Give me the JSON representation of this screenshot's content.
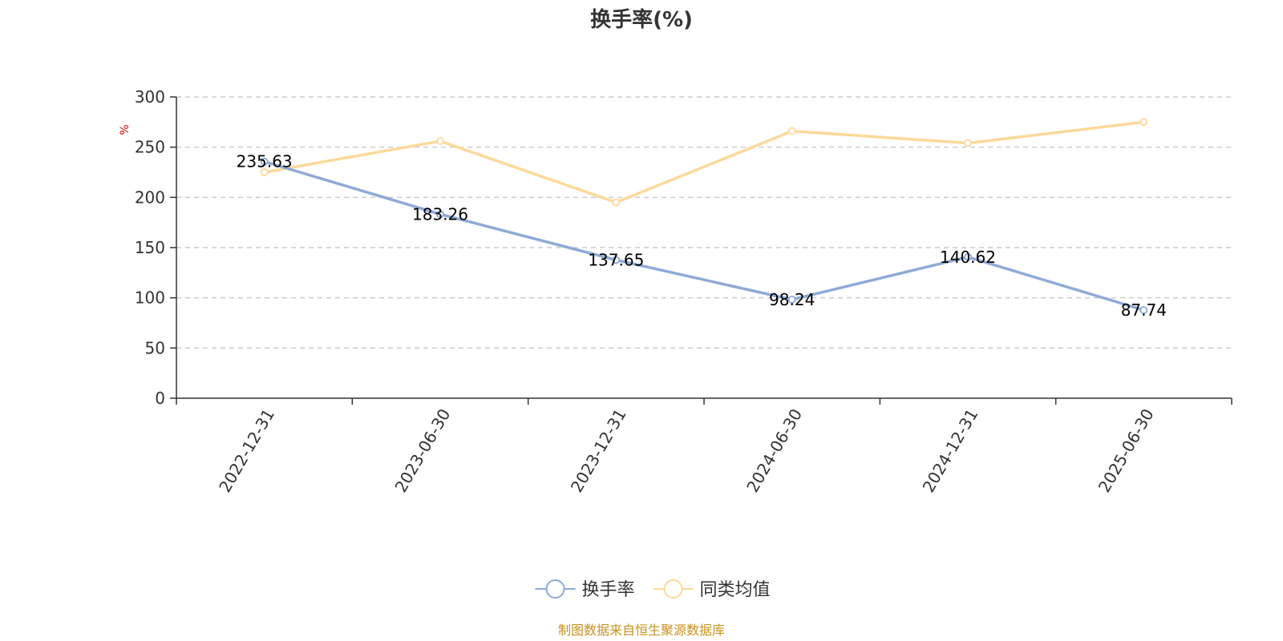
{
  "chart_data": {
    "type": "line",
    "title": "换手率(%)",
    "ylabel": "%",
    "xlabel": "",
    "categories": [
      "2022-12-31",
      "2023-06-30",
      "2023-12-31",
      "2024-06-30",
      "2024-12-31",
      "2025-06-30"
    ],
    "ylim": [
      0,
      300
    ],
    "yticks": [
      0,
      50,
      100,
      150,
      200,
      250,
      300
    ],
    "grid": true,
    "legend_position": "bottom",
    "series": [
      {
        "name": "换手率",
        "color": "#8eaad6",
        "values": [
          235.63,
          183.26,
          137.65,
          98.24,
          140.62,
          87.74
        ],
        "labels": [
          "235.63",
          "183.26",
          "137.65",
          "98.24",
          "140.62",
          "87.74"
        ]
      },
      {
        "name": "同类均值",
        "color": "#fcd99a",
        "values": [
          225,
          256,
          195,
          266,
          254,
          275
        ]
      }
    ]
  },
  "footer": {
    "source": "制图数据来自恒生聚源数据库"
  }
}
